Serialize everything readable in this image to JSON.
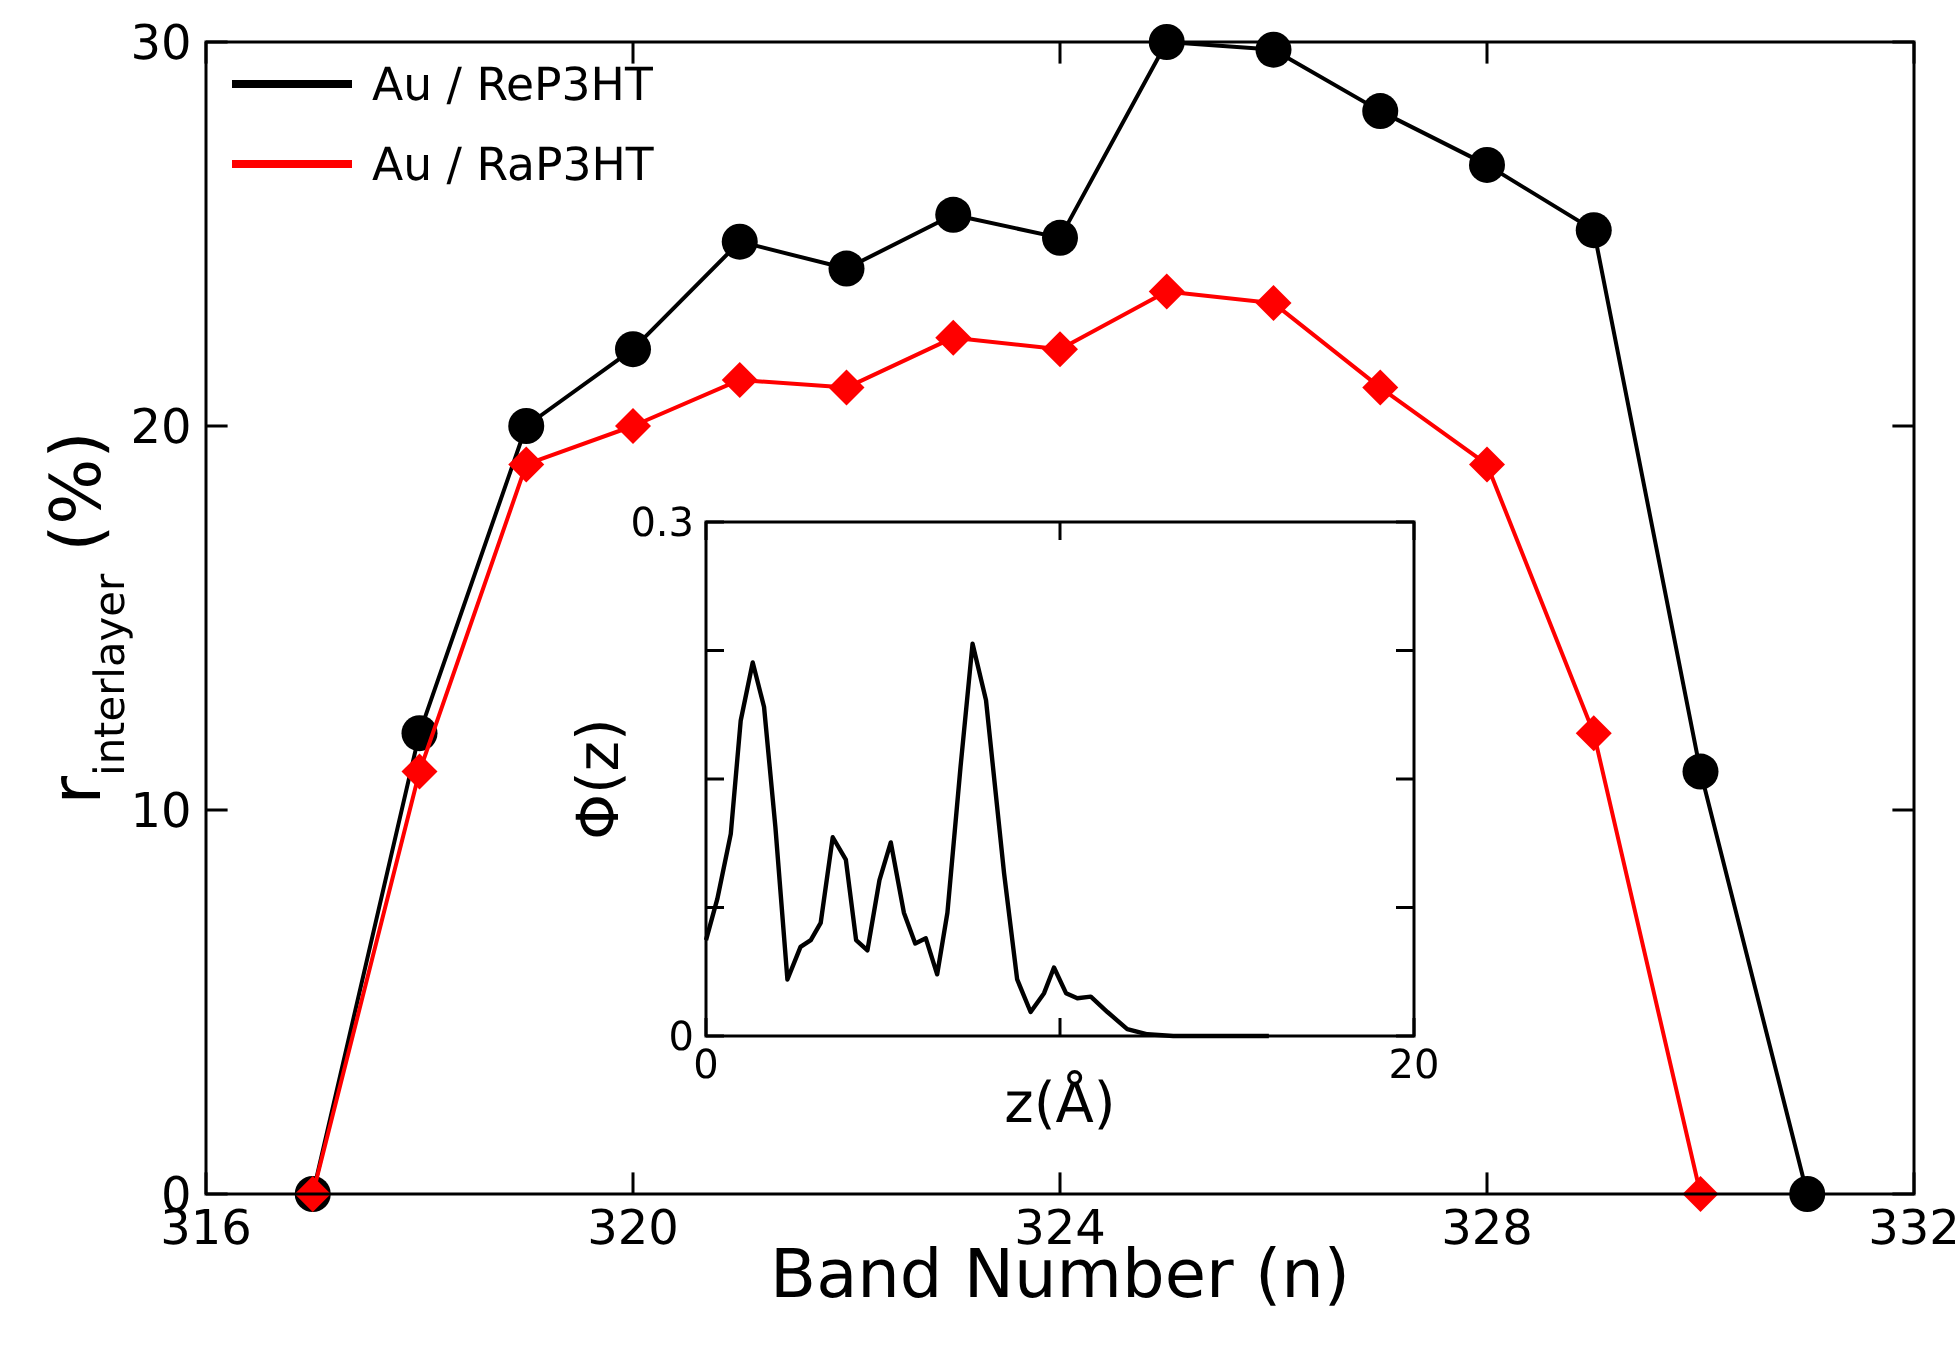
{
  "chart_data": [
    {
      "type": "line",
      "xlabel": "Band Number (n)",
      "ylabel": "r$_{interlayer}$ (%)",
      "xlim": [
        316,
        332
      ],
      "ylim": [
        0,
        30
      ],
      "xticks": [
        316,
        320,
        324,
        328,
        332
      ],
      "yticks": [
        0,
        10,
        20,
        30
      ],
      "legend": "top left",
      "grid": false,
      "x": [
        317,
        318,
        319,
        320,
        321,
        322,
        323,
        324,
        325,
        326,
        327,
        328,
        329,
        330,
        331
      ],
      "series": [
        {
          "name": "Au / ReP3HT",
          "color": "#000000",
          "marker": "circle",
          "values": [
            0,
            12,
            20,
            22,
            24.8,
            24.1,
            25.5,
            24.9,
            30,
            29.8,
            28.2,
            26.8,
            25.1,
            11,
            0
          ]
        },
        {
          "name": "Au / RaP3HT",
          "color": "#ff0000",
          "marker": "diamond",
          "values": [
            0,
            11,
            19,
            20,
            21.2,
            21,
            22.3,
            22,
            23.5,
            23.2,
            21,
            19,
            12,
            0,
            null
          ]
        }
      ]
    },
    {
      "type": "line",
      "xlabel": "z(Å)",
      "ylabel": "Φ(z)",
      "xlim": [
        0,
        20
      ],
      "ylim": [
        0,
        0.3
      ],
      "xticks": [
        0,
        {
          "value": 10,
          "label": null
        },
        20
      ],
      "yticks": [
        0,
        {
          "value": 0.075,
          "label": null
        },
        {
          "value": 0.15,
          "label": null
        },
        {
          "value": 0.225,
          "label": null
        },
        0.3
      ],
      "legend": false,
      "grid": false,
      "series": [
        {
          "color": "#000000",
          "marker": "none",
          "x": [
            0,
            0.32,
            0.7,
            0.98,
            1.32,
            1.64,
            1.96,
            2.3,
            2.67,
            2.96,
            3.24,
            3.58,
            3.95,
            4.24,
            4.56,
            4.9,
            5.22,
            5.59,
            5.91,
            6.21,
            6.53,
            6.82,
            7.19,
            7.53,
            7.91,
            8.42,
            8.79,
            9.17,
            9.55,
            9.83,
            10.17,
            10.49,
            10.87,
            11.34,
            11.9,
            12.47,
            13.2,
            15.9
          ],
          "values": [
            0.056,
            0.08,
            0.118,
            0.184,
            0.218,
            0.192,
            0.122,
            0.033,
            0.052,
            0.056,
            0.066,
            0.116,
            0.103,
            0.056,
            0.05,
            0.091,
            0.113,
            0.072,
            0.054,
            0.057,
            0.036,
            0.072,
            0.157,
            0.229,
            0.196,
            0.095,
            0.033,
            0.014,
            0.025,
            0.04,
            0.025,
            0.022,
            0.023,
            0.014,
            0.004,
            0.001,
            0,
            0
          ]
        }
      ]
    }
  ]
}
